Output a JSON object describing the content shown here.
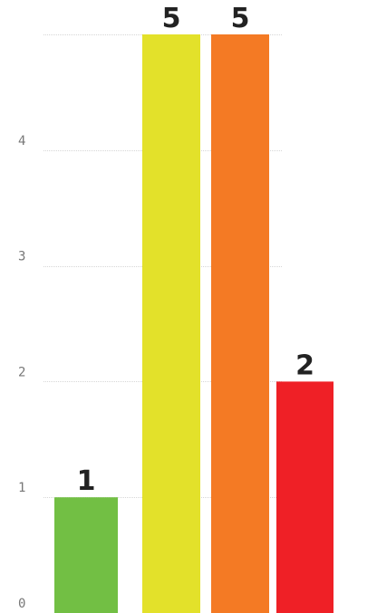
{
  "chart_data": {
    "type": "bar",
    "values": [
      1,
      5,
      5,
      2
    ],
    "value_labels": [
      "1",
      "5",
      "5",
      "2"
    ],
    "colors": [
      "#72bf44",
      "#e3e12a",
      "#f47a24",
      "#ef2026"
    ],
    "yticks": [
      "0",
      "1",
      "2",
      "3",
      "4"
    ],
    "ylim": [
      0,
      5
    ],
    "grid": true,
    "legend": "none"
  }
}
